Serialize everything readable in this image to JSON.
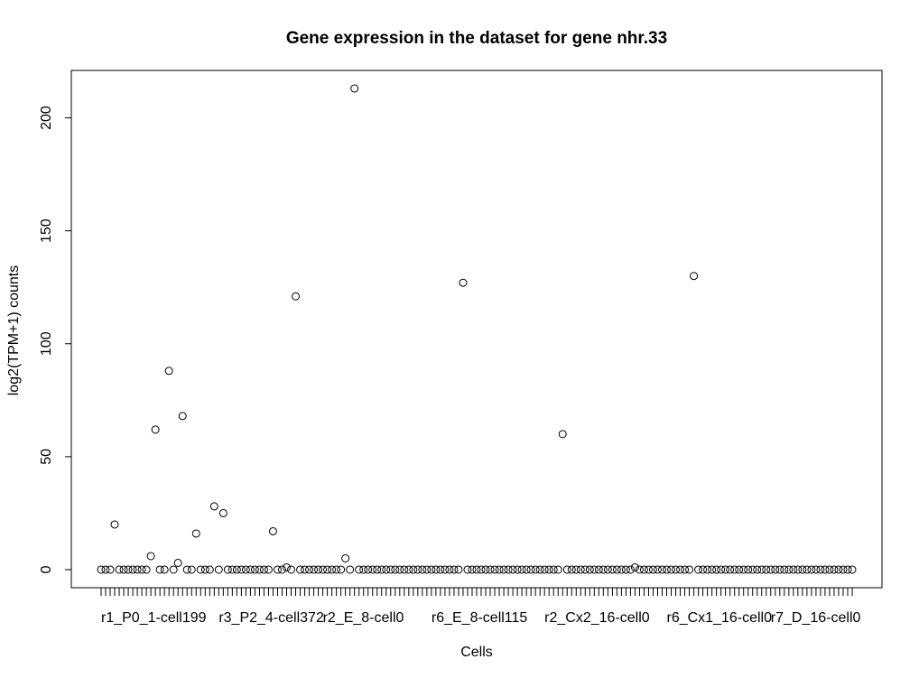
{
  "chart_data": {
    "type": "scatter",
    "title": "Gene expression in the dataset for gene nhr.33",
    "xlabel": "Cells",
    "ylabel": "log2(TPM+1) counts",
    "ylim": [
      -8,
      221
    ],
    "yticks": [
      0,
      50,
      100,
      150,
      200
    ],
    "point_count": 167,
    "x_tick_labels": [
      {
        "index": 1,
        "label": "r1_P0_1-cell199"
      },
      {
        "index": 27,
        "label": "r3_P2_4-cell372"
      },
      {
        "index": 50,
        "label": "r2_E_8-cell0"
      },
      {
        "index": 74,
        "label": "r6_E_8-cell115"
      },
      {
        "index": 99,
        "label": "r2_Cx2_16-cell0"
      },
      {
        "index": 126,
        "label": "r6_Cx1_16-cell0"
      },
      {
        "index": 149,
        "label": "r7_D_16-cell0"
      }
    ],
    "nonzero_points": [
      {
        "index": 4,
        "value": 20
      },
      {
        "index": 12,
        "value": 6
      },
      {
        "index": 13,
        "value": 62
      },
      {
        "index": 16,
        "value": 88
      },
      {
        "index": 18,
        "value": 3
      },
      {
        "index": 19,
        "value": 68
      },
      {
        "index": 22,
        "value": 16
      },
      {
        "index": 26,
        "value": 28
      },
      {
        "index": 28,
        "value": 25
      },
      {
        "index": 39,
        "value": 17
      },
      {
        "index": 42,
        "value": 1
      },
      {
        "index": 44,
        "value": 121
      },
      {
        "index": 55,
        "value": 5
      },
      {
        "index": 57,
        "value": 213
      },
      {
        "index": 81,
        "value": 127
      },
      {
        "index": 103,
        "value": 60
      },
      {
        "index": 119,
        "value": 1
      },
      {
        "index": 132,
        "value": 130
      }
    ],
    "default_value": 0,
    "grid": false,
    "legend": "none"
  }
}
